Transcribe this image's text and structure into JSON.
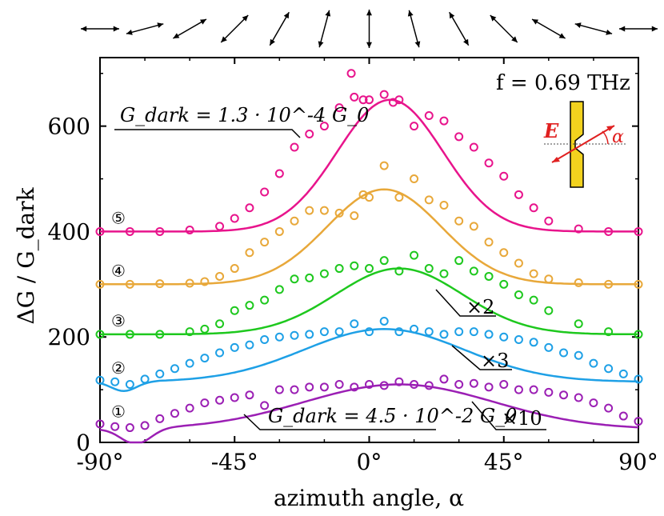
{
  "chart_data": {
    "type": "scatter",
    "xlabel": "azimuth angle, α",
    "ylabel": "ΔG / G_dark",
    "xlim": [
      -90,
      90
    ],
    "ylim": [
      0,
      730
    ],
    "x_ticks": [
      "-90°",
      "-45°",
      "0°",
      "45°",
      "90°"
    ],
    "y_ticks": [
      "0",
      "200",
      "400",
      "600"
    ],
    "grid": false,
    "annotations": {
      "frequency": "f = 0.69 THz",
      "gdark_top": "G_dark = 1.3 · 10^-4 G_0",
      "gdark_bottom": "G_dark = 4.5 · 10^-2 G_0",
      "mult_3": "×2",
      "mult_2": "×3",
      "mult_1": "×10",
      "inset_e": "E",
      "inset_alpha": "α"
    },
    "series": [
      {
        "label": "⑤",
        "color": "#e8148c",
        "offset": 400,
        "amplitude": 250,
        "center": 7,
        "width": 25,
        "x": [
          -90,
          -80,
          -70,
          -60,
          -50,
          -45,
          -40,
          -35,
          -30,
          -25,
          -20,
          -15,
          -10,
          -6,
          -5,
          -2,
          0,
          5,
          8,
          10,
          15,
          20,
          25,
          30,
          35,
          40,
          45,
          50,
          55,
          60,
          70,
          80,
          90
        ],
        "y": [
          400,
          400,
          400,
          403,
          410,
          425,
          445,
          475,
          510,
          560,
          585,
          600,
          635,
          700,
          655,
          650,
          650,
          660,
          645,
          650,
          600,
          620,
          610,
          580,
          560,
          530,
          505,
          470,
          445,
          420,
          405,
          400,
          400
        ]
      },
      {
        "label": "④",
        "color": "#e8a83a",
        "offset": 300,
        "amplitude": 180,
        "center": 5,
        "width": 27,
        "x": [
          -90,
          -80,
          -70,
          -60,
          -55,
          -50,
          -45,
          -40,
          -35,
          -30,
          -25,
          -20,
          -15,
          -10,
          -5,
          -2,
          0,
          5,
          10,
          15,
          20,
          25,
          30,
          35,
          40,
          45,
          50,
          55,
          60,
          70,
          80,
          90
        ],
        "y": [
          300,
          300,
          301,
          302,
          305,
          315,
          330,
          360,
          380,
          400,
          420,
          440,
          440,
          435,
          430,
          470,
          465,
          525,
          465,
          500,
          460,
          450,
          420,
          410,
          380,
          360,
          340,
          320,
          310,
          303,
          300,
          300
        ]
      },
      {
        "label": "③",
        "color": "#1ec81e",
        "offset": 205,
        "amplitude": 125,
        "center": 10,
        "width": 30,
        "x": [
          -90,
          -80,
          -70,
          -60,
          -55,
          -50,
          -45,
          -40,
          -35,
          -30,
          -25,
          -20,
          -15,
          -10,
          -5,
          0,
          5,
          10,
          15,
          20,
          25,
          30,
          35,
          40,
          45,
          50,
          55,
          60,
          70,
          80,
          90
        ],
        "y": [
          205,
          205,
          205,
          210,
          215,
          225,
          250,
          260,
          270,
          290,
          310,
          312,
          320,
          330,
          335,
          330,
          345,
          325,
          355,
          330,
          320,
          345,
          325,
          315,
          300,
          280,
          270,
          250,
          225,
          210,
          205
        ]
      },
      {
        "label": "②",
        "color": "#1ea0e6",
        "offset": 115,
        "amplitude": 100,
        "center": 5,
        "width": 38,
        "x": [
          -90,
          -85,
          -80,
          -75,
          -70,
          -65,
          -60,
          -55,
          -50,
          -45,
          -40,
          -35,
          -30,
          -25,
          -20,
          -15,
          -10,
          -5,
          0,
          5,
          10,
          15,
          20,
          25,
          30,
          35,
          40,
          45,
          50,
          55,
          60,
          65,
          70,
          75,
          80,
          85,
          90
        ],
        "y": [
          118,
          115,
          110,
          120,
          130,
          140,
          150,
          160,
          170,
          180,
          185,
          195,
          200,
          203,
          205,
          210,
          210,
          225,
          210,
          230,
          210,
          215,
          210,
          205,
          210,
          210,
          205,
          200,
          195,
          190,
          180,
          170,
          165,
          150,
          140,
          130,
          120
        ]
      },
      {
        "label": "①",
        "color": "#9b1fb4",
        "offset": 25,
        "amplitude": 85,
        "center": 10,
        "width": 45,
        "x": [
          -90,
          -85,
          -80,
          -75,
          -70,
          -65,
          -60,
          -55,
          -50,
          -45,
          -40,
          -35,
          -30,
          -25,
          -20,
          -15,
          -10,
          -5,
          0,
          5,
          10,
          15,
          20,
          25,
          30,
          35,
          40,
          45,
          50,
          55,
          60,
          65,
          70,
          75,
          80,
          85,
          90
        ],
        "y": [
          35,
          30,
          28,
          32,
          45,
          55,
          65,
          75,
          80,
          85,
          90,
          70,
          100,
          100,
          105,
          105,
          110,
          105,
          110,
          108,
          115,
          110,
          108,
          120,
          110,
          112,
          105,
          110,
          100,
          100,
          95,
          90,
          85,
          75,
          65,
          50,
          40
        ]
      }
    ]
  },
  "arrows": [
    "arrow-90",
    "arrow-75",
    "arrow-60",
    "arrow-45",
    "arrow-30",
    "arrow-15",
    "arrow-0",
    "arrow+15",
    "arrow+30",
    "arrow+45",
    "arrow+60",
    "arrow+75",
    "arrow+90"
  ]
}
